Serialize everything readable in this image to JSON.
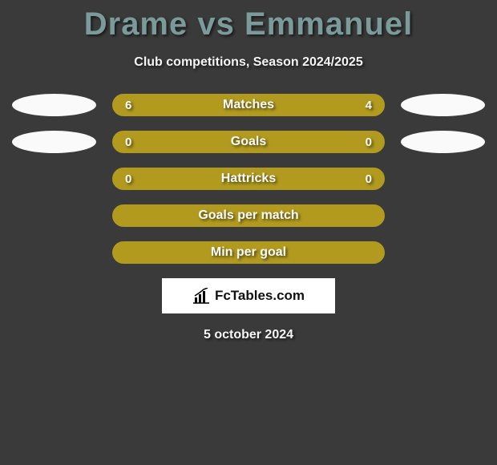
{
  "title": "Drame vs Emmanuel",
  "subtitle": "Club competitions, Season 2024/2025",
  "rows": [
    {
      "label": "Matches",
      "left_value": "6",
      "right_value": "4",
      "left_pct": 60,
      "right_pct": 40,
      "fill_color": "#b29a1f",
      "show_side_ellipses": true
    },
    {
      "label": "Goals",
      "left_value": "0",
      "right_value": "0",
      "left_pct": 0,
      "right_pct": 0,
      "fill_color": "#b29a1f",
      "show_side_ellipses": true
    },
    {
      "label": "Hattricks",
      "left_value": "0",
      "right_value": "0",
      "left_pct": 0,
      "right_pct": 0,
      "fill_color": "#b29a1f",
      "show_side_ellipses": false
    },
    {
      "label": "Goals per match",
      "left_value": "",
      "right_value": "",
      "left_pct": 0,
      "right_pct": 0,
      "fill_color": "#b29a1f",
      "show_side_ellipses": false
    },
    {
      "label": "Min per goal",
      "left_value": "",
      "right_value": "",
      "left_pct": 0,
      "right_pct": 0,
      "fill_color": "#b29a1f",
      "show_side_ellipses": false
    }
  ],
  "brand": {
    "text": "FcTables.com",
    "icon": "bar-chart-icon"
  },
  "date": "5 october 2024",
  "colors": {
    "background": "#3a3a3a",
    "title_color": "#7b9a9a",
    "text_light": "#f5f5f5",
    "bar_border": "#b29a1f",
    "bar_fill": "#b29a1f",
    "ellipse": "#fafafa",
    "brand_bg": "#ffffff"
  }
}
